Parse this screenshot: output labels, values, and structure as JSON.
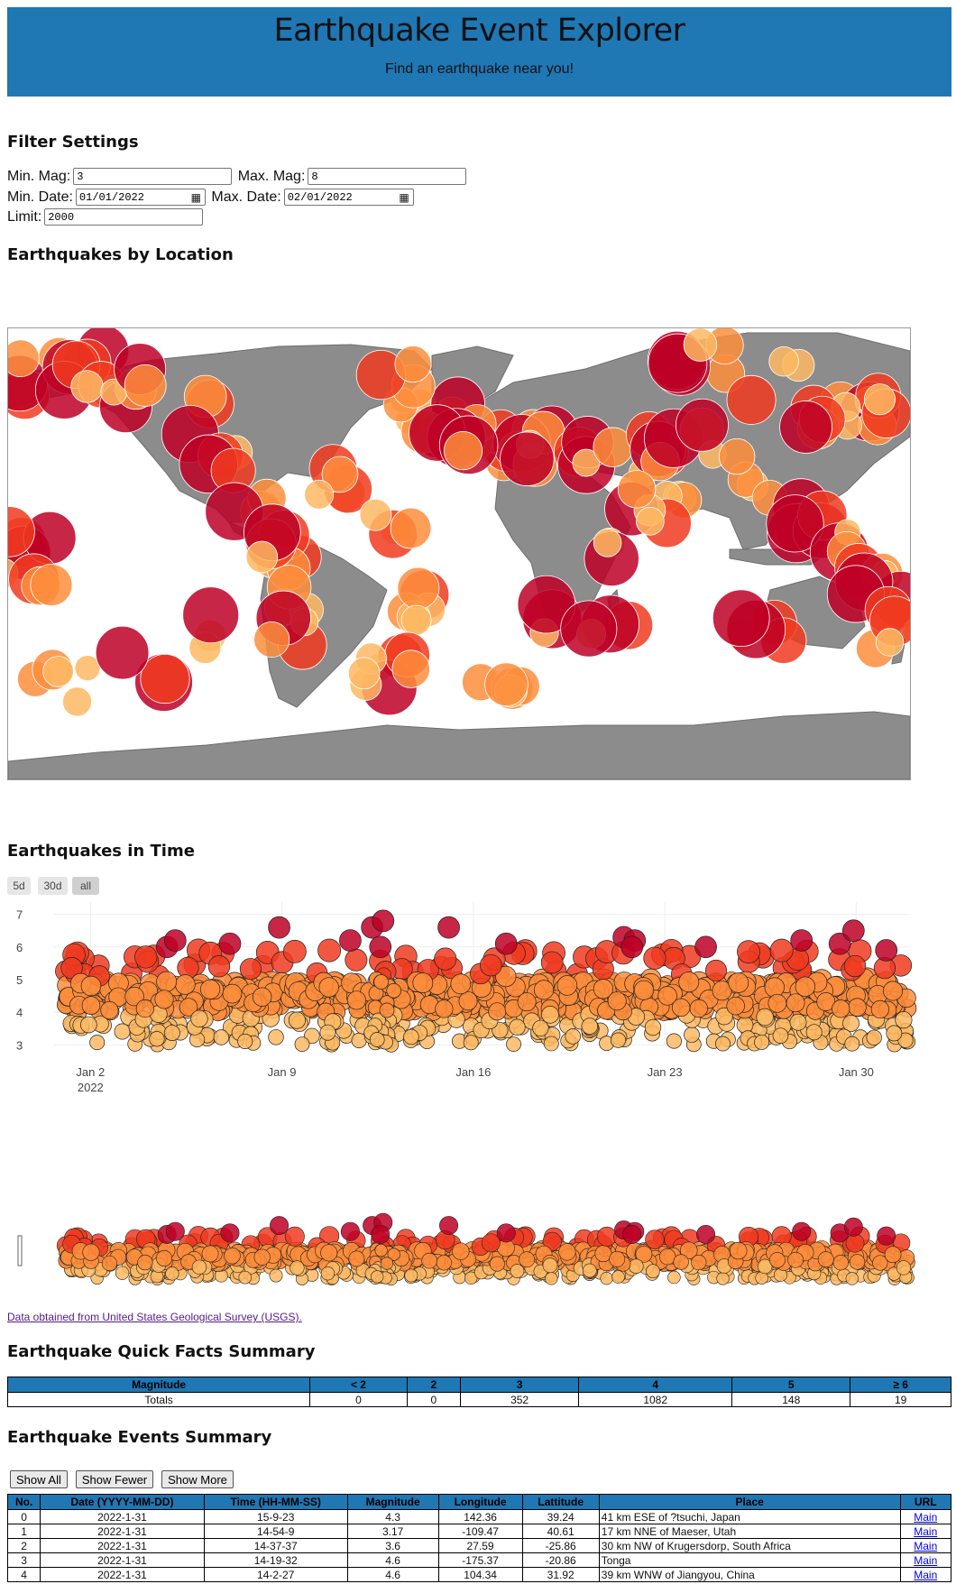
{
  "header": {
    "title": "Earthquake Event Explorer",
    "subtitle": "Find an earthquake near you!"
  },
  "filters": {
    "heading": "Filter Settings",
    "min_mag_label": "Min. Mag:",
    "min_mag_value": "3",
    "max_mag_label": "Max. Mag:",
    "max_mag_value": "8",
    "min_date_label": "Min. Date:",
    "min_date_value": "01/01/2022",
    "max_date_label": "Max. Date:",
    "max_date_value": "02/01/2022",
    "limit_label": "Limit:",
    "limit_value": "2000"
  },
  "map_section": {
    "heading": "Earthquakes by Location"
  },
  "time_section": {
    "heading": "Earthquakes in Time",
    "range_buttons": [
      "5d",
      "30d",
      "all"
    ],
    "active_range": "all"
  },
  "chart_data": {
    "type": "scatter",
    "y_ticks": [
      "3",
      "4",
      "5",
      "6",
      "7"
    ],
    "ylim": [
      2.9,
      7.1
    ],
    "x_ticks": [
      "Jan 2",
      "Jan 9",
      "Jan 16",
      "Jan 23",
      "Jan 30"
    ],
    "x_tick_days": [
      2,
      9,
      16,
      23,
      30
    ],
    "x_year_label": "2022",
    "xlim_days": [
      1,
      32
    ],
    "grid": true,
    "color_scale": [
      "#fdb863",
      "#fd8d3c",
      "#f03b20",
      "#bd0026"
    ],
    "highlight_points": [
      {
        "day": 4.8,
        "mag": 6.0
      },
      {
        "day": 5.1,
        "mag": 6.2
      },
      {
        "day": 7.1,
        "mag": 6.1
      },
      {
        "day": 8.9,
        "mag": 6.6
      },
      {
        "day": 11.5,
        "mag": 6.2
      },
      {
        "day": 12.3,
        "mag": 6.6
      },
      {
        "day": 12.7,
        "mag": 6.8
      },
      {
        "day": 12.6,
        "mag": 6.0
      },
      {
        "day": 15.1,
        "mag": 6.6
      },
      {
        "day": 17.2,
        "mag": 6.1
      },
      {
        "day": 21.5,
        "mag": 6.3
      },
      {
        "day": 21.9,
        "mag": 6.2
      },
      {
        "day": 21.8,
        "mag": 6.0
      },
      {
        "day": 24.5,
        "mag": 6.0
      },
      {
        "day": 28.0,
        "mag": 6.2
      },
      {
        "day": 29.4,
        "mag": 6.1
      },
      {
        "day": 29.9,
        "mag": 6.5
      },
      {
        "day": 31.1,
        "mag": 5.9
      }
    ]
  },
  "source": {
    "text": "Data obtained from United States Geological Survey (USGS)."
  },
  "quick_facts": {
    "heading": "Earthquake Quick Facts Summary",
    "headers": [
      "Magnitude",
      "< 2",
      "2",
      "3",
      "4",
      "5",
      "≥ 6"
    ],
    "row": [
      "Totals",
      "0",
      "0",
      "352",
      "1082",
      "148",
      "19"
    ]
  },
  "events": {
    "heading": "Earthquake Events Summary",
    "buttons": [
      "Show All",
      "Show Fewer",
      "Show More"
    ],
    "headers": [
      "No.",
      "Date (YYYY-MM-DD)",
      "Time (HH-MM-SS)",
      "Magnitude",
      "Longitude",
      "Lattitude",
      "Place",
      "URL"
    ],
    "rows": [
      [
        "0",
        "2022-1-31",
        "15-9-23",
        "4.3",
        "142.36",
        "39.24",
        "41 km ESE of ?tsuchi, Japan",
        "Main"
      ],
      [
        "1",
        "2022-1-31",
        "14-54-9",
        "3.17",
        "-109.47",
        "40.61",
        "17 km NNE of Maeser, Utah",
        "Main"
      ],
      [
        "2",
        "2022-1-31",
        "14-37-37",
        "3.6",
        "27.59",
        "-25.86",
        "30 km NW of Krugersdorp, South Africa",
        "Main"
      ],
      [
        "3",
        "2022-1-31",
        "14-19-32",
        "4.6",
        "-175.37",
        "-20.86",
        "Tonga",
        "Main"
      ],
      [
        "4",
        "2022-1-31",
        "14-2-27",
        "4.6",
        "104.34",
        "31.92",
        "39 km WNW of Jiangyou, China",
        "Main"
      ]
    ]
  },
  "colors": {
    "header_bg": "#1f77b4",
    "land": "#8c8c8c"
  }
}
